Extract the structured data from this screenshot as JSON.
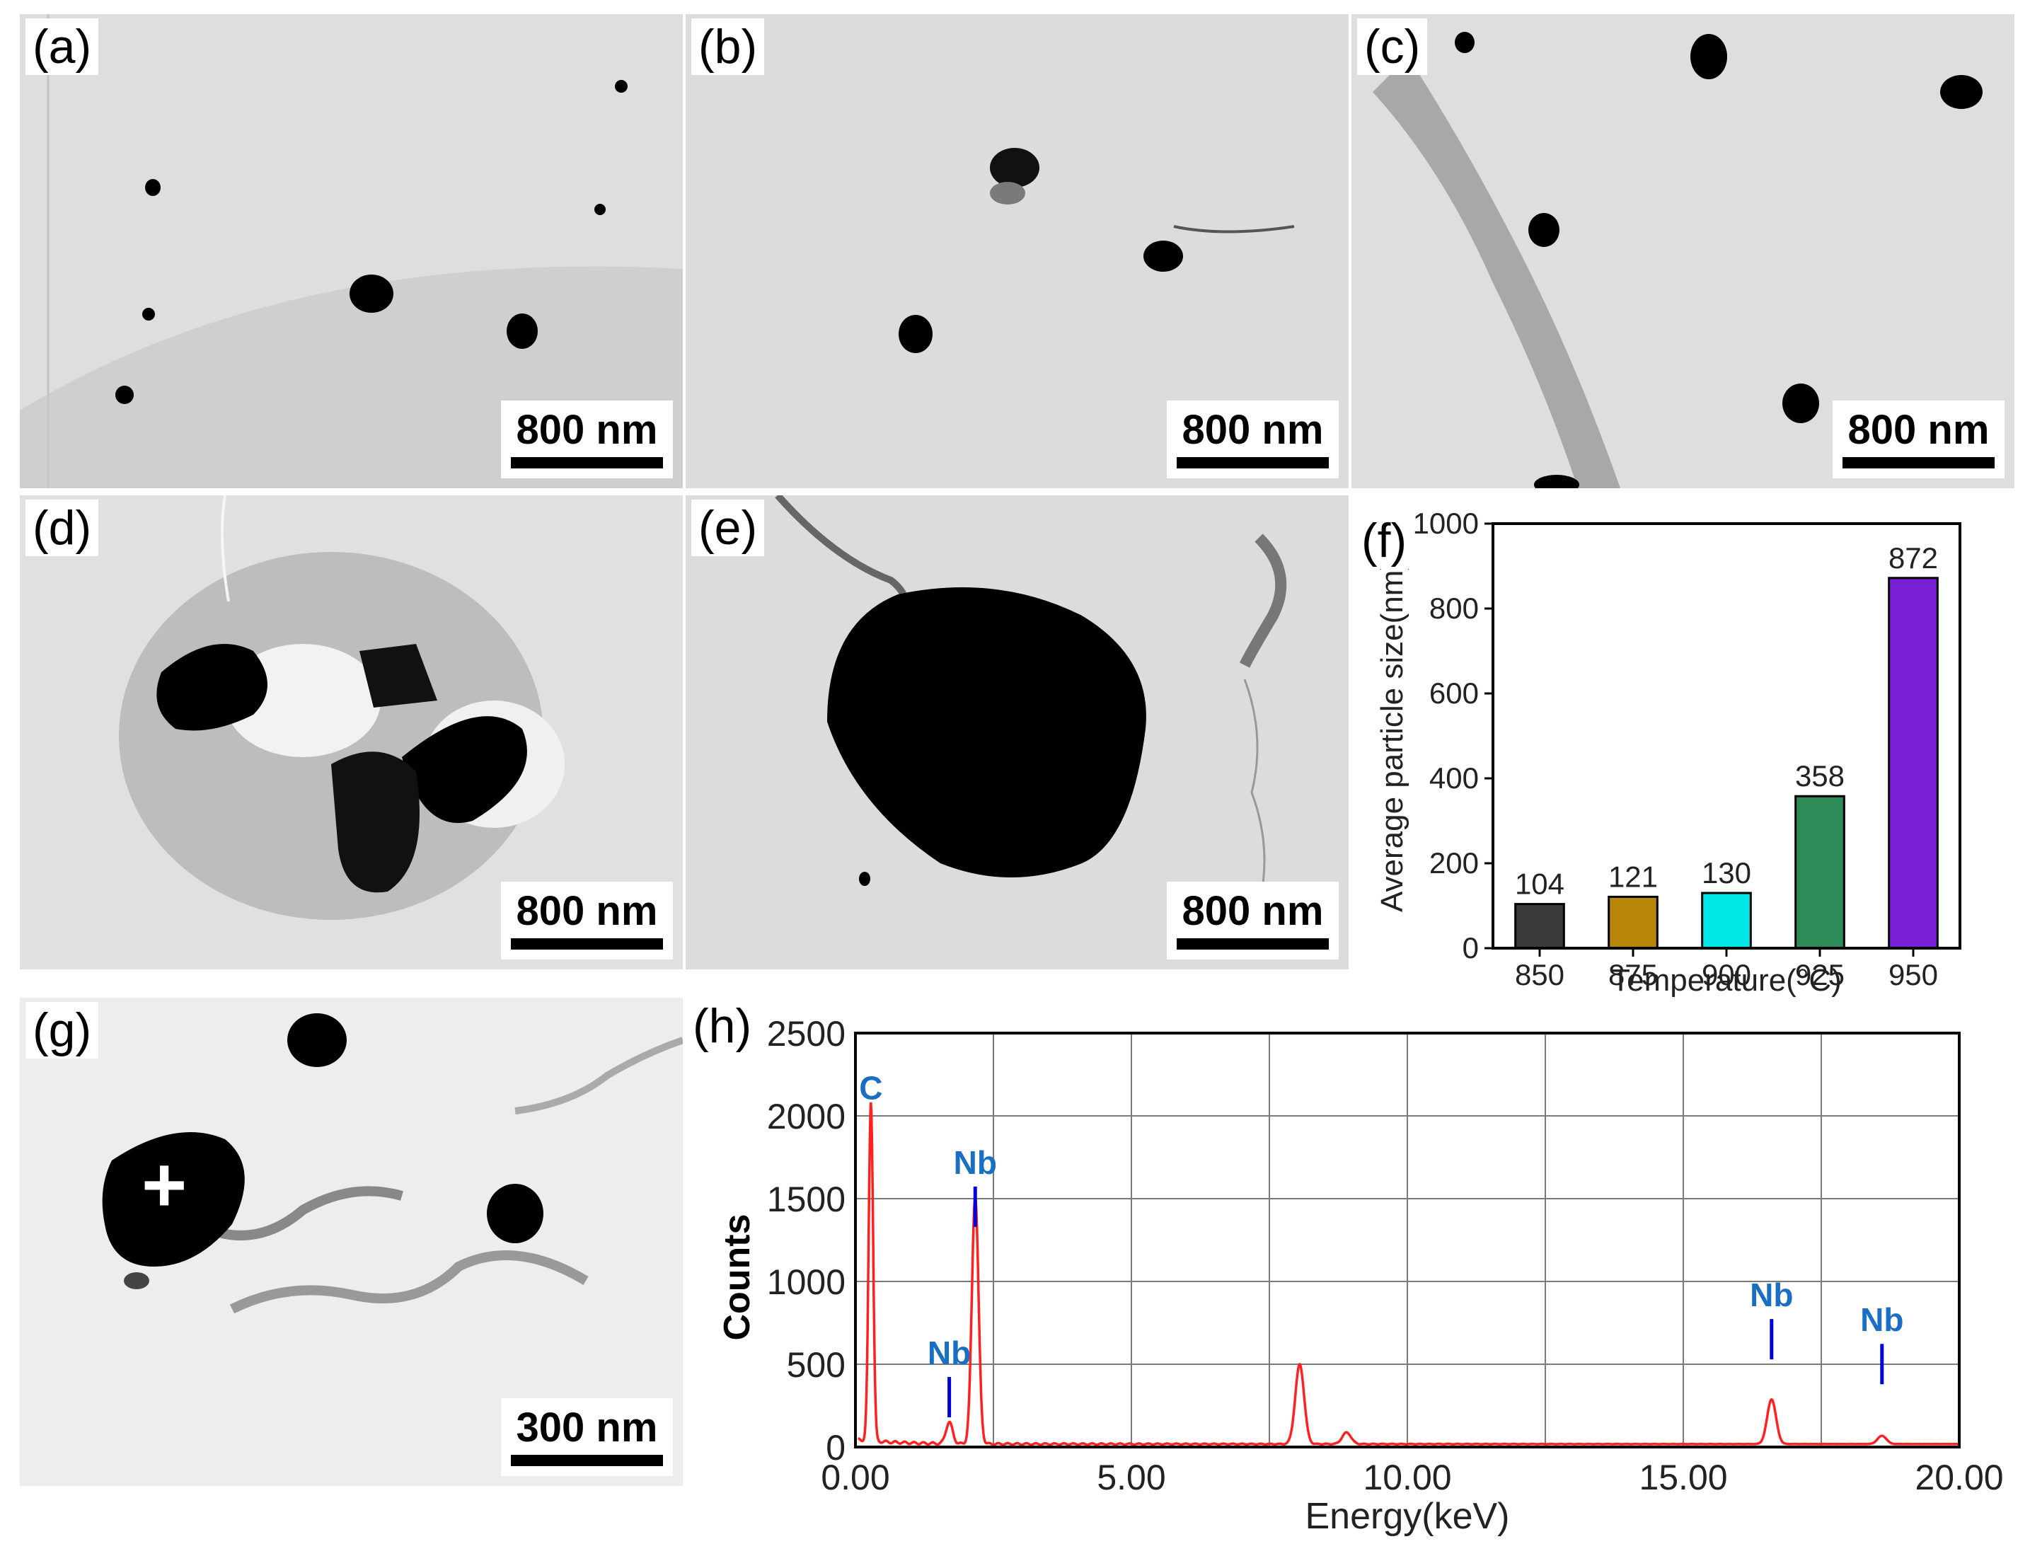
{
  "panels": {
    "a": {
      "label": "(a)",
      "scale": "800 nm"
    },
    "b": {
      "label": "(b)",
      "scale": "800 nm"
    },
    "c": {
      "label": "(c)",
      "scale": "800 nm"
    },
    "d": {
      "label": "(d)",
      "scale": "800 nm"
    },
    "e": {
      "label": "(e)",
      "scale": "800 nm"
    },
    "f": {
      "label": "(f)"
    },
    "g": {
      "label": "(g)",
      "scale": "300 nm",
      "marker": "+"
    },
    "h": {
      "label": "(h)"
    }
  },
  "chart_data": [
    {
      "type": "bar",
      "panel": "f",
      "categories": [
        "850",
        "875",
        "900",
        "925",
        "950"
      ],
      "values": [
        104,
        121,
        130,
        358,
        872
      ],
      "value_labels": [
        "104",
        "121",
        "130",
        "358",
        "872"
      ],
      "xlabel": "Temperature(°C)",
      "ylabel": "Average particle size(nm)",
      "ylim": [
        0,
        1000
      ],
      "yticks": [
        "0",
        "200",
        "400",
        "600",
        "800",
        "1000"
      ],
      "colors": [
        "#3a3a3a",
        "#b8860b",
        "#00e5e5",
        "#2e8b57",
        "#7b1fd6"
      ],
      "grid": false
    },
    {
      "type": "line",
      "panel": "h",
      "xlabel": "Energy(keV)",
      "ylabel": "Counts",
      "xlim": [
        0,
        20
      ],
      "ylim": [
        0,
        2500
      ],
      "xticks": [
        "0.00",
        "5.00",
        "10.00",
        "15.00",
        "20.00"
      ],
      "yticks": [
        "0",
        "500",
        "1000",
        "1500",
        "2000",
        "2500"
      ],
      "grid": true,
      "line_color": "#ff2020",
      "peaks": [
        {
          "x": 0.28,
          "y": 2050
        },
        {
          "x": 2.17,
          "y": 1500
        },
        {
          "x": 1.7,
          "y": 130
        },
        {
          "x": 8.05,
          "y": 480
        },
        {
          "x": 8.9,
          "y": 70
        },
        {
          "x": 16.6,
          "y": 270
        },
        {
          "x": 18.6,
          "y": 50
        }
      ],
      "annotations": [
        {
          "text": "C",
          "x": 0.28,
          "y": 2100
        },
        {
          "text": "Nb",
          "x": 2.17,
          "y": 1650
        },
        {
          "text": "Nb",
          "x": 1.7,
          "y": 500
        },
        {
          "text": "Nb",
          "x": 16.6,
          "y": 850
        },
        {
          "text": "Nb",
          "x": 18.6,
          "y": 700
        }
      ],
      "annotation_color": "#1a6fc4",
      "marker_color": "#0000dd"
    }
  ]
}
